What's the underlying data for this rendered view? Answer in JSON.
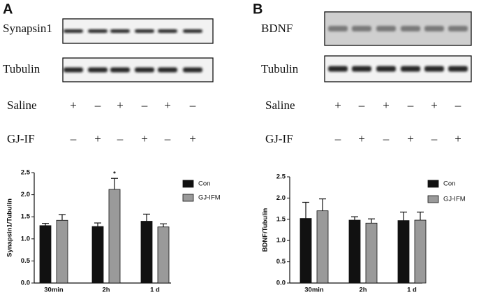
{
  "panels": [
    {
      "letter": "A",
      "blot_labels": [
        "Synapsin1",
        "Tubulin"
      ],
      "conditions": [
        {
          "name": "Saline",
          "signs": [
            "+",
            "–",
            "+",
            "–",
            "+",
            "–"
          ]
        },
        {
          "name": "GJ-IF",
          "signs": [
            "–",
            "+",
            "–",
            "+",
            "–",
            "+"
          ]
        }
      ]
    },
    {
      "letter": "B",
      "blot_labels": [
        "BDNF",
        "Tubulin"
      ],
      "conditions": [
        {
          "name": "Saline",
          "signs": [
            "+",
            "–",
            "+",
            "–",
            "+",
            "–"
          ]
        },
        {
          "name": "GJ-IF",
          "signs": [
            "–",
            "+",
            "–",
            "+",
            "–",
            "+"
          ]
        }
      ]
    }
  ],
  "chart_data": [
    {
      "type": "bar",
      "ylabel": "Synapsin1/Tubulin",
      "categories": [
        "30min",
        "2h",
        "1 d"
      ],
      "series": [
        {
          "name": "Con",
          "color": "#111111",
          "values": [
            1.3,
            1.28,
            1.4
          ],
          "errors": [
            0.05,
            0.08,
            0.16
          ]
        },
        {
          "name": "GJ-IFM",
          "color": "#9a9a9a",
          "values": [
            1.42,
            2.12,
            1.27
          ],
          "errors": [
            0.13,
            0.25,
            0.07
          ]
        }
      ],
      "ylim": [
        0,
        2.5
      ],
      "yticks": [
        {
          "value": 0,
          "label": "0.0"
        },
        0.5,
        {
          "value": 1,
          "label": "1.0"
        },
        1.5,
        {
          "value": 2,
          "label": "2.0"
        },
        2.5
      ],
      "annotation": "*"
    },
    {
      "type": "bar",
      "ylabel": "BDNF/Tubulin",
      "categories": [
        "30min",
        "2h",
        "1 d"
      ],
      "series": [
        {
          "name": "Con",
          "color": "#111111",
          "values": [
            1.52,
            1.48,
            1.47
          ],
          "errors": [
            0.38,
            0.08,
            0.2
          ]
        },
        {
          "name": "GJ-IFM",
          "color": "#9a9a9a",
          "values": [
            1.7,
            1.41,
            1.48
          ],
          "errors": [
            0.28,
            0.1,
            0.19
          ]
        }
      ],
      "ylim": [
        0,
        2.5
      ],
      "yticks": [
        {
          "value": 0,
          "label": "0.0"
        },
        0.5,
        {
          "value": 1,
          "label": "1.0"
        },
        1.5,
        {
          "value": 2,
          "label": "2.0"
        },
        2.5
      ]
    }
  ]
}
